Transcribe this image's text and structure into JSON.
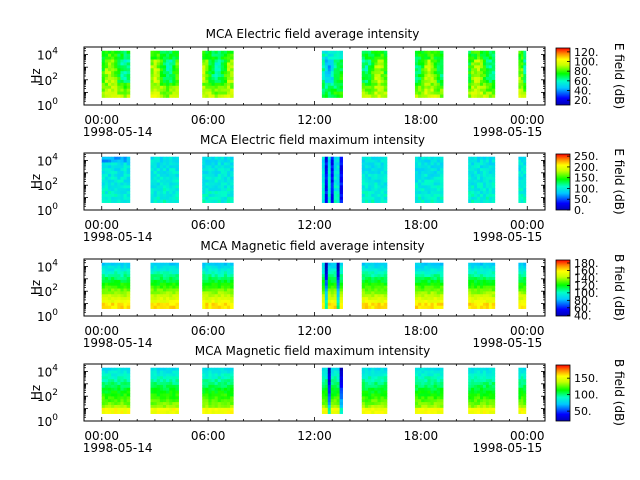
{
  "chart_data": [
    {
      "type": "heatmap",
      "title": "MCA  Electric field average intensity",
      "ylabel": "Hz",
      "yscale": "log",
      "y_ticks": [
        "10",
        "10",
        "10"
      ],
      "y_tick_exponents": [
        "0",
        "2",
        "4"
      ],
      "x_ticks": [
        "00:00",
        "06:00",
        "12:00",
        "18:00",
        "00:00"
      ],
      "x_dates": [
        "1998-05-14",
        "1998-05-15"
      ],
      "colorbar": {
        "label": "E field (dB)",
        "ticks": [
          "20.",
          "40.",
          "60.",
          "80.",
          "100.",
          "120."
        ],
        "range": [
          10,
          128
        ]
      },
      "data_intervals": [
        [
          "00:00",
          "01:35"
        ],
        [
          "02:45",
          "04:20"
        ],
        [
          "05:40",
          "07:25"
        ],
        [
          "12:25",
          "13:35"
        ],
        [
          "14:40",
          "16:05"
        ],
        [
          "17:40",
          "19:15"
        ],
        [
          "20:40",
          "22:10"
        ],
        [
          "23:30",
          "23:55"
        ]
      ],
      "profile": "eavg"
    },
    {
      "type": "heatmap",
      "title": "MCA  Electric field maximum intensity",
      "ylabel": "Hz",
      "yscale": "log",
      "y_ticks": [
        "10",
        "10",
        "10"
      ],
      "y_tick_exponents": [
        "0",
        "2",
        "4"
      ],
      "x_ticks": [
        "00:00",
        "06:00",
        "12:00",
        "18:00",
        "00:00"
      ],
      "x_dates": [
        "1998-05-14",
        "1998-05-15"
      ],
      "colorbar": {
        "label": "E field (dB)",
        "ticks": [
          "0.",
          "50.",
          "100.",
          "150.",
          "200.",
          "250."
        ],
        "range": [
          0,
          260
        ]
      },
      "data_intervals": [
        [
          "00:00",
          "01:35"
        ],
        [
          "02:45",
          "04:20"
        ],
        [
          "05:40",
          "07:25"
        ],
        [
          "12:25",
          "13:35"
        ],
        [
          "14:40",
          "16:05"
        ],
        [
          "17:40",
          "19:15"
        ],
        [
          "20:40",
          "22:10"
        ],
        [
          "23:30",
          "23:55"
        ]
      ],
      "profile": "emax"
    },
    {
      "type": "heatmap",
      "title": "MCA  Magnetic field average intensity",
      "ylabel": "Hz",
      "yscale": "log",
      "y_ticks": [
        "10",
        "10",
        "10"
      ],
      "y_tick_exponents": [
        "0",
        "2",
        "4"
      ],
      "x_ticks": [
        "00:00",
        "06:00",
        "12:00",
        "18:00",
        "00:00"
      ],
      "x_dates": [
        "1998-05-14",
        "1998-05-15"
      ],
      "colorbar": {
        "label": "B field (dB)",
        "ticks": [
          "40.",
          "60.",
          "80.",
          "100.",
          "120.",
          "140.",
          "160.",
          "180."
        ],
        "range": [
          38,
          188
        ]
      },
      "data_intervals": [
        [
          "00:00",
          "01:35"
        ],
        [
          "02:45",
          "04:20"
        ],
        [
          "05:40",
          "07:25"
        ],
        [
          "12:25",
          "13:35"
        ],
        [
          "14:40",
          "16:05"
        ],
        [
          "17:40",
          "19:15"
        ],
        [
          "20:40",
          "22:10"
        ],
        [
          "23:30",
          "23:55"
        ]
      ],
      "profile": "bavg"
    },
    {
      "type": "heatmap",
      "title": "MCA  Magnetic field maximum intensity",
      "ylabel": "Hz",
      "yscale": "log",
      "y_ticks": [
        "10",
        "10",
        "10"
      ],
      "y_tick_exponents": [
        "0",
        "2",
        "4"
      ],
      "x_ticks": [
        "00:00",
        "06:00",
        "12:00",
        "18:00",
        "00:00"
      ],
      "x_dates": [
        "1998-05-14",
        "1998-05-15"
      ],
      "colorbar": {
        "label": "B field (dB)",
        "ticks": [
          "50.",
          "100.",
          "150."
        ],
        "range": [
          20,
          190
        ]
      },
      "data_intervals": [
        [
          "00:00",
          "01:35"
        ],
        [
          "02:45",
          "04:20"
        ],
        [
          "05:40",
          "07:25"
        ],
        [
          "12:25",
          "13:35"
        ],
        [
          "14:40",
          "16:05"
        ],
        [
          "17:40",
          "19:15"
        ],
        [
          "20:40",
          "22:10"
        ],
        [
          "23:30",
          "23:55"
        ]
      ],
      "profile": "bmax"
    }
  ]
}
